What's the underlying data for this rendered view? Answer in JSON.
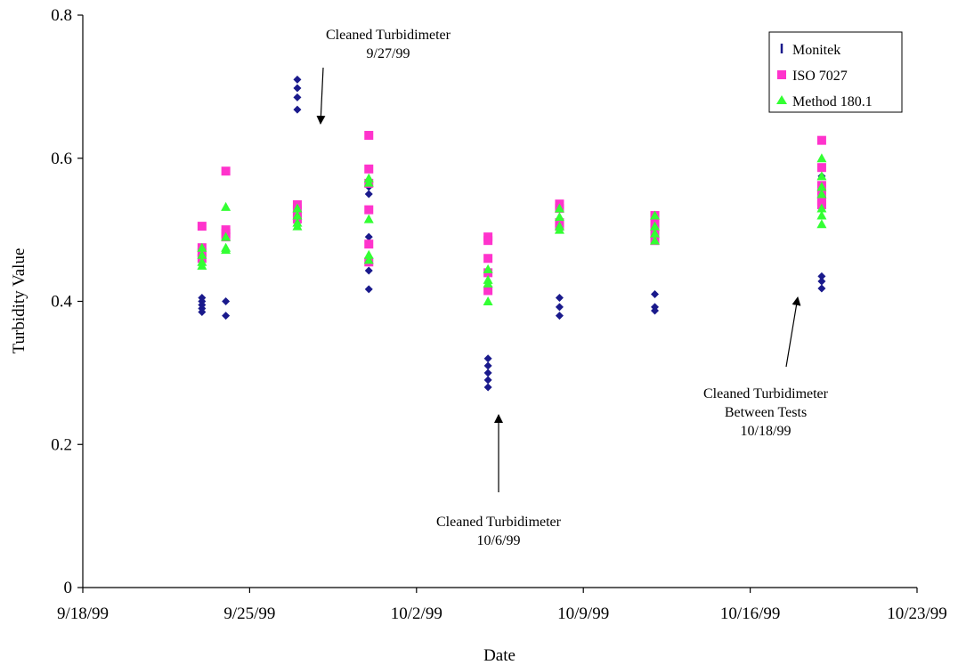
{
  "chart_data": {
    "type": "scatter",
    "title": "",
    "xlabel": "Date",
    "ylabel": "Turbidity Value",
    "xlim": [
      "9/18/99",
      "10/23/99"
    ],
    "ylim": [
      0,
      0.8
    ],
    "x_ticks": [
      "9/18/99",
      "9/25/99",
      "10/2/99",
      "10/9/99",
      "10/16/99",
      "10/23/99"
    ],
    "y_ticks": [
      "0",
      "0.2",
      "0.4",
      "0.6",
      "0.8"
    ],
    "grid": false,
    "legend_position": "top-right",
    "series": [
      {
        "name": "Monitek",
        "color": "#1a1a8c",
        "points": [
          {
            "x": "9/23/99",
            "values": [
              0.385,
              0.39,
              0.395,
              0.4,
              0.405
            ]
          },
          {
            "x": "9/24/99",
            "values": [
              0.38,
              0.4
            ]
          },
          {
            "x": "9/27/99",
            "values": [
              0.668,
              0.685,
              0.698,
              0.71
            ]
          },
          {
            "x": "9/30/99",
            "values": [
              0.417,
              0.443,
              0.455,
              0.49,
              0.55,
              0.56
            ]
          },
          {
            "x": "10/5/99",
            "values": [
              0.28,
              0.29,
              0.3,
              0.31,
              0.32
            ]
          },
          {
            "x": "10/8/99",
            "values": [
              0.38,
              0.392,
              0.405
            ]
          },
          {
            "x": "10/12/99",
            "values": [
              0.387,
              0.392,
              0.41
            ]
          },
          {
            "x": "10/19/99",
            "values": [
              0.418,
              0.428,
              0.435,
              0.575
            ]
          }
        ]
      },
      {
        "name": "ISO 7027",
        "color": "#ff33cc",
        "points": [
          {
            "x": "9/23/99",
            "values": [
              0.505,
              0.475,
              0.468,
              0.46
            ]
          },
          {
            "x": "9/24/99",
            "values": [
              0.582,
              0.5,
              0.495,
              0.49
            ]
          },
          {
            "x": "9/27/99",
            "values": [
              0.535,
              0.528,
              0.52,
              0.515
            ]
          },
          {
            "x": "9/30/99",
            "values": [
              0.632,
              0.585,
              0.565,
              0.528,
              0.48,
              0.455
            ]
          },
          {
            "x": "10/5/99",
            "values": [
              0.49,
              0.485,
              0.46,
              0.44,
              0.415
            ]
          },
          {
            "x": "10/8/99",
            "values": [
              0.536,
              0.53,
              0.51,
              0.505
            ]
          },
          {
            "x": "10/12/99",
            "values": [
              0.52,
              0.51,
              0.5,
              0.49,
              0.485
            ]
          },
          {
            "x": "10/19/99",
            "values": [
              0.625,
              0.587,
              0.562,
              0.55,
              0.54,
              0.535
            ]
          }
        ]
      },
      {
        "name": "Method 180.1",
        "color": "#33ff33",
        "points": [
          {
            "x": "9/23/99",
            "values": [
              0.475,
              0.465,
              0.455,
              0.45
            ]
          },
          {
            "x": "9/24/99",
            "values": [
              0.532,
              0.49,
              0.475,
              0.472
            ]
          },
          {
            "x": "9/27/99",
            "values": [
              0.53,
              0.52,
              0.51,
              0.505
            ]
          },
          {
            "x": "9/30/99",
            "values": [
              0.572,
              0.566,
              0.515,
              0.465,
              0.458
            ]
          },
          {
            "x": "10/5/99",
            "values": [
              0.445,
              0.43,
              0.425,
              0.4
            ]
          },
          {
            "x": "10/8/99",
            "values": [
              0.53,
              0.518,
              0.505,
              0.5
            ]
          },
          {
            "x": "10/12/99",
            "values": [
              0.52,
              0.505,
              0.495,
              0.485
            ]
          },
          {
            "x": "10/19/99",
            "values": [
              0.6,
              0.575,
              0.56,
              0.55,
              0.53,
              0.52,
              0.508
            ]
          }
        ]
      }
    ],
    "annotations": [
      {
        "lines": [
          "Cleaned Turbidimeter",
          "9/27/99"
        ]
      },
      {
        "lines": [
          "Cleaned Turbidimeter",
          "10/6/99"
        ]
      },
      {
        "lines": [
          "Cleaned Turbidimeter",
          "Between Tests",
          "10/18/99"
        ]
      }
    ]
  }
}
